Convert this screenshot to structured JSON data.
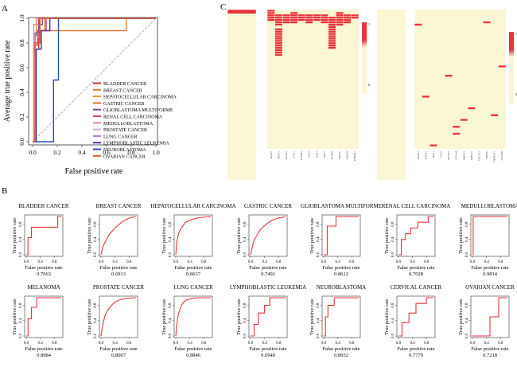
{
  "panel_labels": {
    "a": "A",
    "b": "B",
    "c": "C"
  },
  "colors": {
    "heat_background": "#fbf6d3",
    "heat_cell": "#e8343c",
    "legend_top": "#e8343c",
    "legend_bottom": "#fbf6d3",
    "panel_b_line": "#e8343c",
    "diagonal": "#999999"
  },
  "chart_data": [
    {
      "id": "panel-a",
      "type": "line",
      "title": "",
      "xlabel": "False positive rate",
      "ylabel": "Average true positive rate",
      "xlim": [
        0,
        1
      ],
      "ylim": [
        0,
        1
      ],
      "xticks": [
        "0.0",
        "0.2",
        "0.4",
        "0.6",
        "0.8",
        "1.0"
      ],
      "yticks": [
        "0.0",
        "0.2",
        "0.4",
        "0.6",
        "0.8",
        "1.0"
      ],
      "diagonal": true,
      "legend": "center-right",
      "series": [
        {
          "name": "BLADDER CANCER",
          "color": "#b5392b",
          "x": [
            0,
            0.02,
            0.02,
            0.05,
            0.05,
            1
          ],
          "y": [
            0,
            0,
            0.75,
            0.75,
            1,
            1
          ]
        },
        {
          "name": "BREAST CANCER",
          "color": "#e07a2e",
          "x": [
            0,
            0.01,
            0.01,
            0.04,
            0.04,
            0.76,
            0.76,
            1
          ],
          "y": [
            0,
            0,
            0.8,
            0.8,
            0.9,
            0.9,
            1,
            1
          ]
        },
        {
          "name": "HEPATOCELLULAR CARCINOMA",
          "color": "#d99b2b",
          "x": [
            0,
            0.01,
            0.01,
            0.03,
            0.03,
            0.08,
            0.08,
            1
          ],
          "y": [
            0,
            0,
            0.85,
            0.85,
            0.95,
            0.95,
            1,
            1
          ]
        },
        {
          "name": "GASTRIC CANCER",
          "color": "#e0702d",
          "x": [
            0,
            0.02,
            0.02,
            0.04,
            0.04,
            0.1,
            0.1,
            1
          ],
          "y": [
            0,
            0,
            0.8,
            0.8,
            0.9,
            0.9,
            1,
            1
          ]
        },
        {
          "name": "GLIOBLASTOMA MULTIFORME",
          "color": "#7b4a9e",
          "x": [
            0,
            0.02,
            0.02,
            0.05,
            0.05,
            0.08,
            0.08,
            1
          ],
          "y": [
            0,
            0,
            0.88,
            0.88,
            0.95,
            0.95,
            1,
            1
          ]
        },
        {
          "name": "RENAL CELL CARCINOMA",
          "color": "#c44b8c",
          "x": [
            0,
            0.01,
            0.01,
            0.04,
            0.04,
            0.11,
            0.11,
            1
          ],
          "y": [
            0,
            0,
            0.78,
            0.78,
            0.9,
            0.9,
            1,
            1
          ]
        },
        {
          "name": "MEDULLOBLASTOMA",
          "color": "#e8888c",
          "x": [
            0,
            0.01,
            0.01,
            0.03,
            0.03,
            1
          ],
          "y": [
            0,
            0,
            0.95,
            0.95,
            1,
            1
          ]
        },
        {
          "name": "PROSTATE CANCER",
          "color": "#c9b0d6",
          "x": [
            0,
            0.02,
            0.02,
            0.06,
            0.06,
            1
          ],
          "y": [
            0,
            0,
            0.85,
            0.85,
            1,
            1
          ]
        },
        {
          "name": "LUNG CANCER",
          "color": "#b07cc8",
          "x": [
            0,
            0.02,
            0.02,
            0.06,
            0.06,
            1
          ],
          "y": [
            0,
            0,
            0.87,
            0.87,
            1,
            1
          ]
        },
        {
          "name": "LYMPHOBLASTIC LEUKEMIA",
          "color": "#5a2d8c",
          "x": [
            0,
            0.03,
            0.03,
            0.07,
            0.07,
            0.14,
            0.14,
            1
          ],
          "y": [
            0,
            0,
            0.75,
            0.75,
            0.9,
            0.9,
            1,
            1
          ]
        },
        {
          "name": "NEUROBLASTOMA",
          "color": "#2f4fb0",
          "x": [
            0,
            0.17,
            0.17,
            0.21,
            0.21,
            1
          ],
          "y": [
            0,
            0,
            0.5,
            0.5,
            1,
            1
          ]
        },
        {
          "name": "OVARIAN CANCER",
          "color": "#e05a30",
          "x": [
            0,
            0.02,
            0.02,
            0.06,
            0.06,
            1
          ],
          "y": [
            0,
            0,
            0.8,
            0.8,
            1,
            1
          ]
        }
      ]
    },
    {
      "id": "panel-b",
      "type": "line",
      "xlabel": "False positive rate",
      "ylabel": "True positive rate",
      "xlim": [
        0,
        1
      ],
      "ylim": [
        0,
        1
      ],
      "xticks": [
        "0.0",
        "0.4",
        "0.8"
      ],
      "yticks": [
        "0.0",
        "0.4",
        "0.8"
      ],
      "panels": [
        {
          "title": "BLADDER CANCER",
          "auc": "0.7663",
          "x": [
            0,
            0.05,
            0.05,
            0.15,
            0.15,
            0.9,
            0.9,
            1
          ],
          "y": [
            0,
            0,
            0.45,
            0.45,
            0.72,
            0.72,
            1,
            1
          ]
        },
        {
          "title": "BREAST CANCER",
          "auc": "0.6913",
          "x": [
            0,
            0.05,
            0.1,
            0.18,
            0.25,
            0.32,
            0.4,
            0.5,
            0.6,
            0.72,
            0.85,
            1
          ],
          "y": [
            0,
            0.2,
            0.3,
            0.45,
            0.55,
            0.62,
            0.7,
            0.78,
            0.86,
            0.92,
            0.97,
            1
          ]
        },
        {
          "title": "HEPATOCELLULAR CARCINOMA",
          "auc": "0.8637",
          "x": [
            0,
            0.03,
            0.08,
            0.12,
            0.2,
            0.28,
            0.4,
            0.55,
            0.75,
            1
          ],
          "y": [
            0,
            0.35,
            0.55,
            0.65,
            0.75,
            0.85,
            0.9,
            0.95,
            0.98,
            1
          ]
        },
        {
          "title": "GASTRIC CANCER",
          "auc": "0.7492",
          "x": [
            0,
            0.05,
            0.1,
            0.18,
            0.25,
            0.35,
            0.45,
            0.6,
            0.8,
            1
          ],
          "y": [
            0,
            0.2,
            0.38,
            0.5,
            0.62,
            0.72,
            0.8,
            0.9,
            0.96,
            1
          ]
        },
        {
          "title": "GLIOBLASTOMA MULTIFORME",
          "auc": "0.8612",
          "x": [
            0,
            0.1,
            0.1,
            0.35,
            0.35,
            1
          ],
          "y": [
            0,
            0,
            0.75,
            0.75,
            1,
            1
          ]
        },
        {
          "title": "RENAL CELL CARCINOMA",
          "auc": "0.7028",
          "x": [
            0,
            0.08,
            0.08,
            0.2,
            0.2,
            0.35,
            0.35,
            0.55,
            0.55,
            0.85,
            0.85,
            1
          ],
          "y": [
            0,
            0,
            0.4,
            0.4,
            0.55,
            0.55,
            0.7,
            0.7,
            0.85,
            0.85,
            1,
            1
          ]
        },
        {
          "title": "MEDULLOBLASTOMA",
          "auc": "0.9814",
          "x": [
            0,
            0.02,
            0.02,
            1
          ],
          "y": [
            0,
            0,
            1,
            1
          ]
        },
        {
          "title": "MELANOMA",
          "auc": "0.8984",
          "x": [
            0,
            0.05,
            0.05,
            0.15,
            0.15,
            0.3,
            0.3,
            1
          ],
          "y": [
            0,
            0,
            0.45,
            0.45,
            0.75,
            0.75,
            1,
            1
          ]
        },
        {
          "title": "PROSTATE CANCER",
          "auc": "0.8067",
          "x": [
            0,
            0.04,
            0.08,
            0.12,
            0.18,
            0.25,
            0.32,
            0.42,
            0.55,
            0.75,
            1
          ],
          "y": [
            0,
            0.25,
            0.4,
            0.55,
            0.65,
            0.75,
            0.82,
            0.9,
            0.95,
            0.99,
            1
          ]
        },
        {
          "title": "LUNG CANCER",
          "auc": "0.8846",
          "x": [
            0,
            0.03,
            0.06,
            0.1,
            0.15,
            0.22,
            0.3,
            0.45,
            0.65,
            1
          ],
          "y": [
            0,
            0.3,
            0.5,
            0.65,
            0.78,
            0.88,
            0.94,
            0.98,
            1,
            1
          ]
        },
        {
          "title": "LYMPHOBLASTIC LEUKEMIA",
          "auc": "0.6940",
          "x": [
            0,
            0.1,
            0.1,
            0.22,
            0.22,
            0.4,
            0.4,
            0.55,
            0.55,
            1
          ],
          "y": [
            0,
            0,
            0.3,
            0.3,
            0.6,
            0.6,
            0.8,
            0.8,
            1,
            1
          ]
        },
        {
          "title": "NEUROBLASTOMA",
          "auc": "0.8932",
          "x": [
            0,
            0.05,
            0.05,
            0.12,
            0.12,
            0.3,
            0.3,
            1
          ],
          "y": [
            0,
            0,
            0.5,
            0.5,
            0.8,
            0.8,
            1,
            1
          ]
        },
        {
          "title": "CERVICAL CANCER",
          "auc": "0.7779",
          "x": [
            0,
            0.1,
            0.1,
            0.3,
            0.3,
            0.5,
            0.5,
            0.8,
            0.8,
            1
          ],
          "y": [
            0,
            0,
            0.35,
            0.35,
            0.6,
            0.6,
            0.85,
            0.85,
            1,
            1
          ]
        },
        {
          "title": "OVARIAN CANCER",
          "auc": "0.7218",
          "x": [
            0,
            0.5,
            0.5,
            0.75,
            0.75,
            1
          ],
          "y": [
            0,
            0,
            0.5,
            0.5,
            1,
            1
          ]
        }
      ]
    },
    {
      "id": "panel-c",
      "type": "heatmap",
      "legend_ticks": [
        "1",
        "0"
      ],
      "heatmaps": [
        {
          "name": "heatmap-1",
          "ncols": 1,
          "nrows": 40,
          "cells": [
            [
              0,
              0
            ]
          ],
          "col_labels": []
        },
        {
          "name": "heatmap-2",
          "ncols": 12,
          "nrows": 60,
          "cells": [
            [
              0,
              0
            ],
            [
              0,
              1
            ],
            [
              0,
              2
            ],
            [
              0,
              3
            ],
            [
              0,
              4
            ],
            [
              1,
              2
            ],
            [
              1,
              3
            ],
            [
              1,
              4
            ],
            [
              1,
              5
            ],
            [
              1,
              6
            ],
            [
              1,
              8
            ],
            [
              1,
              9
            ],
            [
              1,
              10
            ],
            [
              1,
              11
            ],
            [
              1,
              12
            ],
            [
              1,
              13
            ],
            [
              1,
              14
            ],
            [
              1,
              15
            ],
            [
              1,
              16
            ],
            [
              1,
              17
            ],
            [
              1,
              18
            ],
            [
              1,
              19
            ],
            [
              2,
              2
            ],
            [
              2,
              3
            ],
            [
              2,
              4
            ],
            [
              2,
              5
            ],
            [
              3,
              1
            ],
            [
              3,
              2
            ],
            [
              3,
              3
            ],
            [
              3,
              4
            ],
            [
              3,
              5
            ],
            [
              4,
              2
            ],
            [
              4,
              3
            ],
            [
              4,
              4
            ],
            [
              5,
              2
            ],
            [
              5,
              3
            ],
            [
              5,
              4
            ],
            [
              5,
              5
            ],
            [
              6,
              2
            ],
            [
              6,
              3
            ],
            [
              6,
              4
            ],
            [
              7,
              2
            ],
            [
              7,
              3
            ],
            [
              7,
              4
            ],
            [
              7,
              5
            ],
            [
              8,
              3
            ],
            [
              8,
              4
            ],
            [
              8,
              5
            ],
            [
              8,
              6
            ],
            [
              8,
              7
            ],
            [
              8,
              8
            ],
            [
              8,
              9
            ],
            [
              8,
              10
            ],
            [
              8,
              11
            ],
            [
              8,
              12
            ],
            [
              8,
              13
            ],
            [
              8,
              14
            ],
            [
              8,
              15
            ],
            [
              8,
              16
            ],
            [
              9,
              1
            ],
            [
              9,
              2
            ],
            [
              9,
              3
            ],
            [
              9,
              4
            ],
            [
              9,
              5
            ],
            [
              9,
              6
            ],
            [
              10,
              2
            ],
            [
              10,
              3
            ],
            [
              10,
              4
            ],
            [
              10,
              5
            ],
            [
              11,
              2
            ],
            [
              11,
              3
            ]
          ],
          "col_labels": [
            "SRSF2",
            "SRSF1",
            "CELF1",
            "FTL1",
            "PSMB1",
            "CCT2",
            "TSN1",
            "DSS1",
            "NOP58",
            "KIF2C",
            "RPLP0",
            "PTP4A1"
          ]
        },
        {
          "name": "heatmap-3",
          "ncols": 1,
          "nrows": 40,
          "cells": [],
          "col_labels": []
        },
        {
          "name": "heatmap-4",
          "ncols": 12,
          "nrows": 60,
          "cells": [
            [
              0,
              6
            ],
            [
              9,
              5
            ],
            [
              4,
              28
            ],
            [
              7,
              42
            ],
            [
              5,
              50
            ],
            [
              5,
              53
            ],
            [
              2,
              58
            ],
            [
              10,
              45
            ],
            [
              11,
              24
            ],
            [
              1,
              37
            ],
            [
              6,
              47
            ]
          ],
          "col_labels": [
            "ZBTB1",
            "HSPA1",
            "HAS1",
            "CCT2",
            "BCAS2",
            "CTLA4",
            "MRPS1",
            "DHX15",
            "SLC7A2",
            "EIF4A",
            "TNFRSF1",
            "NCAPD"
          ]
        }
      ]
    }
  ]
}
